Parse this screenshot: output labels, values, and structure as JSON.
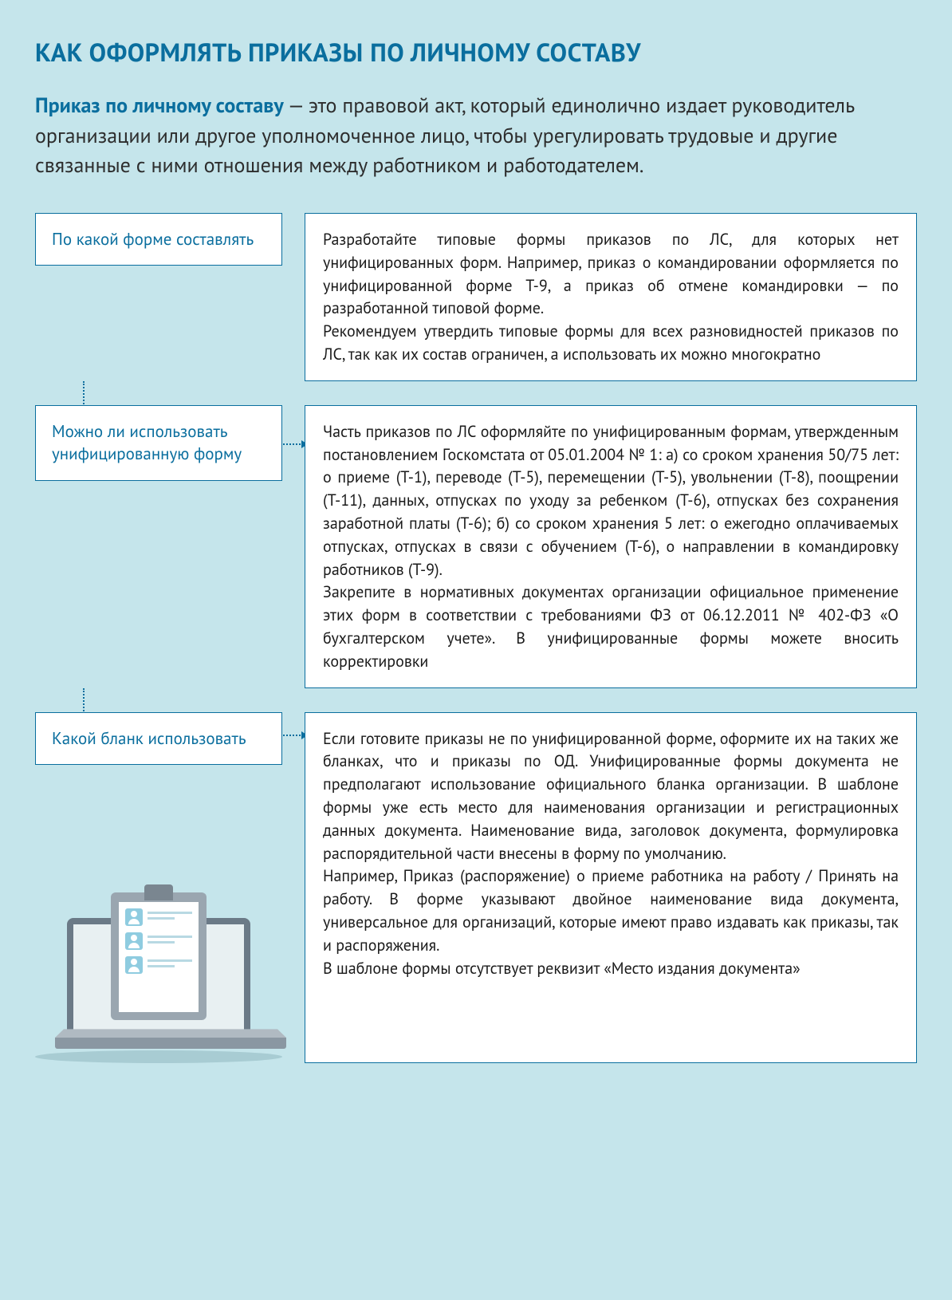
{
  "title": "КАК ОФОРМЛЯТЬ ПРИКАЗЫ ПО ЛИЧНОМУ СОСТАВУ",
  "intro_term": "Приказ по личному составу",
  "intro_rest": " — это правовой акт, который единолично издает руководитель организации или другое уполномоченное лицо, чтобы урегулировать трудовые и другие связанные с ними отношения между работником и работодателем.",
  "sections": [
    {
      "left": "По какой форме составлять",
      "right": "Разработайте типовые формы приказов по ЛС, для которых нет унифицированных форм. Например, приказ о командировании оформляется по унифицированной форме Т-9, а приказ об отмене командировки — по разработанной типовой форме.\nРекомендуем утвердить типовые формы для всех разновидностей приказов по ЛС, так как их состав ограничен, а использовать их можно многократно",
      "connector_height": 80
    },
    {
      "left": "Можно ли использовать унифицированную форму",
      "right": "Часть приказов по ЛС оформляйте по унифицированным формам, утвержденным постановлением Госкомстата от 05.01.2004 № 1: а) со сроком хранения 50/75 лет: о приеме (Т-1), переводе (Т-5), перемещении (Т-5), увольнении (Т-8), поощрении (Т-11), данных, отпусках по уходу за ребенком (Т-6), отпусках без сохранения заработной платы (Т-6); б) со сроком хранения 5 лет: о ежегодно оплачиваемых отпусках, отпусках в связи с обучением (Т-6), о направлении в командировку работников (Т-9).\nЗакрепите в нормативных документах организации официальное применение этих форм в соответствии с требованиями ФЗ от 06.12.2011 № 402-ФЗ «О бухгалтерском учете». В унифицированные формы можете вносить корректировки",
      "connector_height": 60
    },
    {
      "left": "Какой бланк использовать",
      "right": "Если готовите приказы не по унифицированной форме, оформите их на таких же бланках, что и приказы по ОД. Унифицированные формы документа не предполагают использование официального бланка организации. В шаблоне формы уже есть место для наименования организации и регистрационных данных документа. Наименование вида, заголовок документа, формулировка распорядительной части внесены в форму по умолчанию.\nНапример, Приказ (распоряжение) о приеме работника на работу / Принять на работу. В форме указывают двойное наименование вида документа, универсальное для организаций, которые имеют право издавать как приказы, так и распоряжения.\nВ шаблоне формы отсутствует реквизит «Место издания документа»",
      "connector_height": 60
    }
  ],
  "colors": {
    "page_bg": "#c5e5eb",
    "accent": "#0a6e9e",
    "box_bg": "#ffffff",
    "text": "#2d2d2d"
  }
}
